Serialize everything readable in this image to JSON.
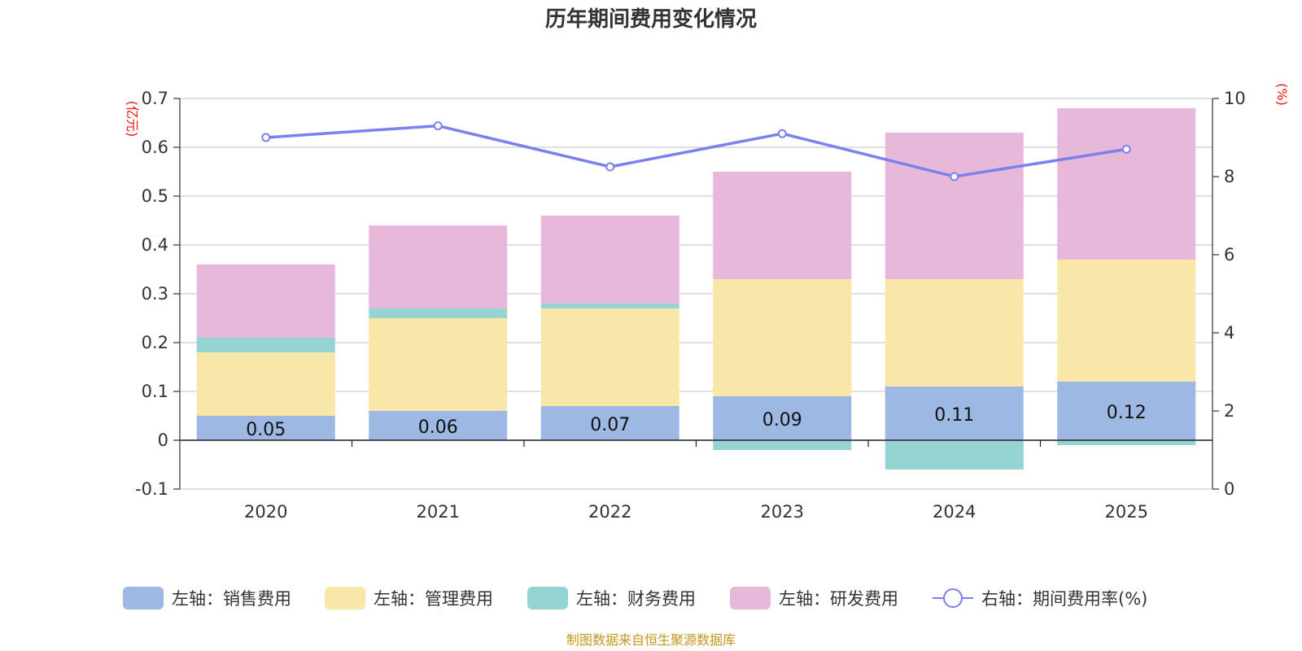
{
  "chart_data": {
    "type": "bar",
    "stacked": true,
    "title": "历年期间费用变化情况",
    "categories": [
      "2020",
      "2021",
      "2022",
      "2023",
      "2024",
      "2025"
    ],
    "left_axis": {
      "unit": "(亿元)",
      "ylim": [
        -0.1,
        0.7
      ],
      "ticks": [
        "-0.1",
        "0",
        "0.1",
        "0.2",
        "0.3",
        "0.4",
        "0.5",
        "0.6",
        "0.7"
      ]
    },
    "right_axis": {
      "unit": "(%)",
      "ylim": [
        0,
        10
      ],
      "ticks": [
        "0",
        "2",
        "4",
        "6",
        "8",
        "10"
      ]
    },
    "series": [
      {
        "name": "左轴：销售费用",
        "axis": "left",
        "type": "bar",
        "color": "#9db8e2",
        "values": [
          0.05,
          0.06,
          0.07,
          0.09,
          0.11,
          0.12
        ],
        "labels": [
          "0.05",
          "0.06",
          "0.07",
          "0.09",
          "0.11",
          "0.12"
        ]
      },
      {
        "name": "左轴：管理费用",
        "axis": "left",
        "type": "bar",
        "color": "#f8e7a8",
        "values": [
          0.13,
          0.19,
          0.2,
          0.24,
          0.22,
          0.25
        ]
      },
      {
        "name": "左轴：财务费用",
        "axis": "left",
        "type": "bar",
        "color": "#96d4d4",
        "values": [
          0.03,
          0.02,
          0.01,
          -0.02,
          -0.06,
          -0.01
        ]
      },
      {
        "name": "左轴：研发费用",
        "axis": "left",
        "type": "bar",
        "color": "#e7b8d9",
        "values": [
          0.15,
          0.17,
          0.18,
          0.22,
          0.3,
          0.31
        ]
      },
      {
        "name": "右轴：期间费用率(%)",
        "axis": "right",
        "type": "line",
        "color": "#7b80ee",
        "values": [
          9.0,
          9.3,
          8.25,
          9.1,
          8.0,
          8.7
        ]
      }
    ],
    "source": "制图数据来自恒生聚源数据库"
  }
}
